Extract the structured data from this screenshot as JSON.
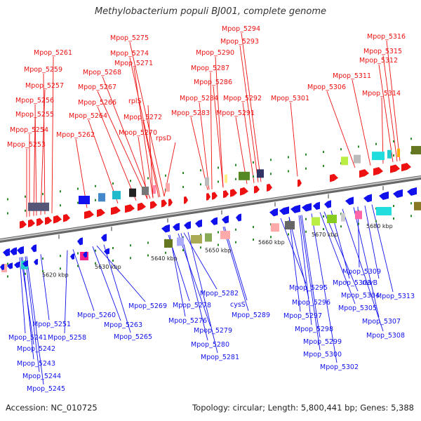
{
  "title": "Methylobacterium populi BJ001, complete genome",
  "accession": "Accession: NC_010725",
  "summary": "Topology: circular; Length: 5,800,441 bp; Genes: 5,388",
  "colors": {
    "forward": "#ee1111",
    "reverse": "#1111ee",
    "backbone": "#9a9a9a"
  },
  "scale_ticks": [
    "5620 kbp",
    "5630 kbp",
    "5640 kbp",
    "5650 kbp",
    "5660 kbp",
    "5670 kbp",
    "5680 kbp"
  ],
  "forward_labels": [
    "Mpop_5294",
    "Mpop_5316",
    "Mpop_5275",
    "Mpop_5293",
    "Mpop_5315",
    "Mpop_5261",
    "Mpop_5274",
    "Mpop_5290",
    "Mpop_5271",
    "Mpop_5312",
    "Mpop_5259",
    "Mpop_5268",
    "Mpop_5287",
    "Mpop_5311",
    "Mpop_5257",
    "Mpop_5267",
    "Mpop_5286",
    "Mpop_5306",
    "Mpop_5314",
    "Mpop_5256",
    "Mpop_5266",
    "rplS",
    "Mpop_5284",
    "Mpop_5292",
    "Mpop_5301",
    "Mpop_5255",
    "Mpop_5264",
    "Mpop_5272",
    "Mpop_5283",
    "Mpop_5291",
    "Mpop_5254",
    "Mpop_5262",
    "Mpop_5270",
    "rpsD",
    "Mpop_5253"
  ],
  "reverse_labels": [
    "Mpop_5309",
    "ruvB",
    "Mpop_5303",
    "Mpop_5313",
    "Mpop_5295",
    "Mpop_5304",
    "Mpop_5269",
    "Mpop_5282",
    "Mpop_5278",
    "Mpop_5296",
    "Mpop_5305",
    "Mpop_5251",
    "Mpop_5260",
    "cysS",
    "Mpop_5276",
    "Mpop_5289",
    "Mpop_5297",
    "Mpop_5263",
    "Mpop_5279",
    "Mpop_5307",
    "Mpop_5241",
    "Mpop_5258",
    "Mpop_5265",
    "Mpop_5298",
    "Mpop_5308",
    "Mpop_5242",
    "Mpop_5280",
    "Mpop_5299",
    "Mpop_5281",
    "Mpop_5300",
    "Mpop_5243",
    "Mpop_5302",
    "Mpop_5244",
    "Mpop_5245"
  ]
}
